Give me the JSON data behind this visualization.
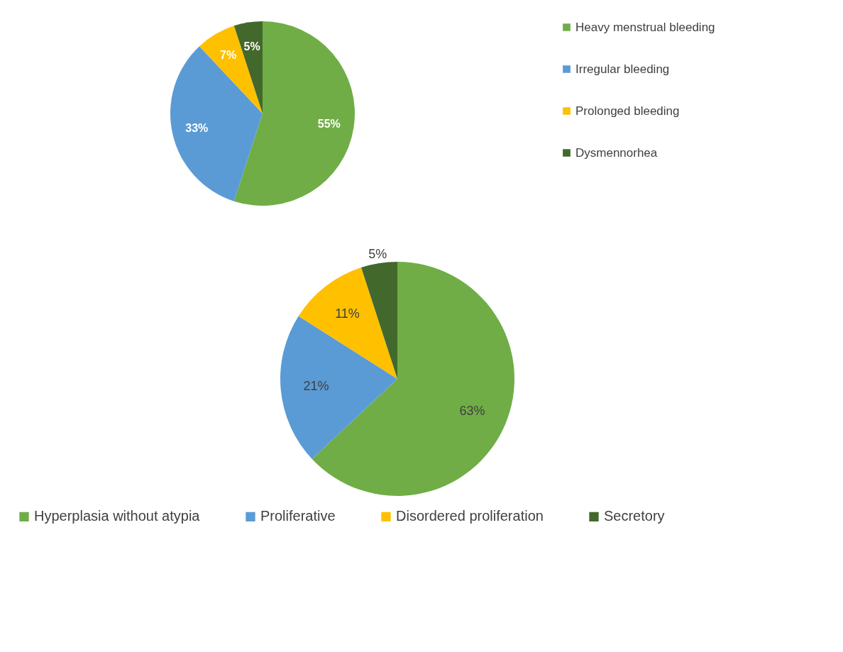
{
  "chart_data": [
    {
      "type": "pie",
      "categories": [
        "Heavy menstrual bleeding",
        "Irregular bleeding",
        "Prolonged bleeding",
        "Dysmennorhea"
      ],
      "values": [
        55,
        33,
        7,
        5
      ],
      "value_labels": [
        "55%",
        "33%",
        "7%",
        "5%"
      ],
      "colors": [
        "#70ad47",
        "#5b9bd5",
        "#ffc000",
        "#43682b"
      ],
      "legend": "right"
    },
    {
      "type": "pie",
      "categories": [
        "Hyperplasia without atypia",
        "Proliferative",
        "Disordered proliferation",
        "Secretory"
      ],
      "values": [
        63,
        21,
        11,
        5
      ],
      "value_labels": [
        "63%",
        "21%",
        "11%",
        "5%"
      ],
      "colors": [
        "#70ad47",
        "#5b9bd5",
        "#ffc000",
        "#43682b"
      ],
      "legend": "bottom"
    }
  ]
}
